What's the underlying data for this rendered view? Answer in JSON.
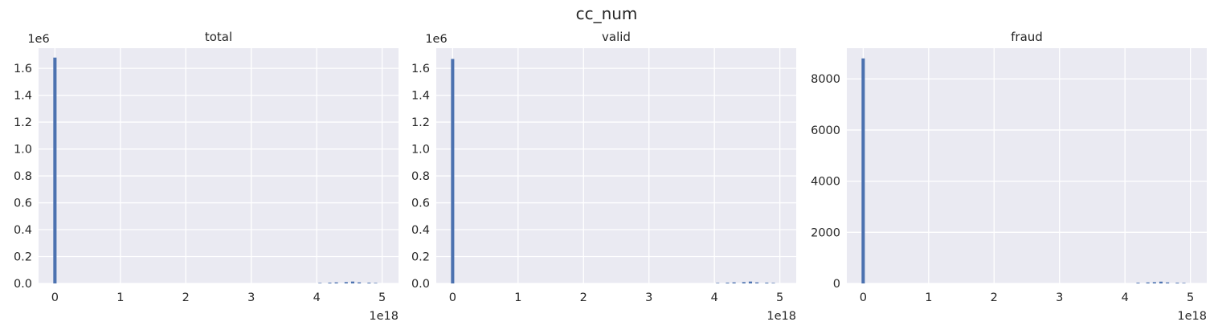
{
  "figure": {
    "suptitle": "cc_num"
  },
  "colors": {
    "bar": "#4c72b0",
    "axes_bg": "#eaeaf2",
    "grid": "#ffffff",
    "text": "#262626"
  },
  "chart_data": [
    {
      "type": "bar",
      "title": "total",
      "xlabel": "",
      "ylabel": "",
      "xlim": [
        -0.25,
        5.25
      ],
      "ylim": [
        0,
        1.75
      ],
      "x_ticks": [
        0,
        1,
        2,
        3,
        4,
        5
      ],
      "x_tick_labels": [
        "0",
        "1",
        "2",
        "3",
        "4",
        "5"
      ],
      "y_ticks": [
        0,
        0.2,
        0.4,
        0.6,
        0.8,
        1.0,
        1.2,
        1.4,
        1.6
      ],
      "y_tick_labels": [
        "0.0",
        "0.2",
        "0.4",
        "0.6",
        "0.8",
        "1.0",
        "1.2",
        "1.4",
        "1.6"
      ],
      "x_offset_label": "1e18",
      "y_offset_label": "1e6",
      "grid": true,
      "bin_width": 0.05,
      "bins": [
        {
          "x": 0.0,
          "value": 1.68
        },
        {
          "x": 4.05,
          "value": 0.004
        },
        {
          "x": 4.2,
          "value": 0.006
        },
        {
          "x": 4.3,
          "value": 0.008
        },
        {
          "x": 4.45,
          "value": 0.01
        },
        {
          "x": 4.55,
          "value": 0.014
        },
        {
          "x": 4.65,
          "value": 0.008
        },
        {
          "x": 4.8,
          "value": 0.006
        },
        {
          "x": 4.9,
          "value": 0.004
        }
      ]
    },
    {
      "type": "bar",
      "title": "valid",
      "xlabel": "",
      "ylabel": "",
      "xlim": [
        -0.25,
        5.25
      ],
      "ylim": [
        0,
        1.75
      ],
      "x_ticks": [
        0,
        1,
        2,
        3,
        4,
        5
      ],
      "x_tick_labels": [
        "0",
        "1",
        "2",
        "3",
        "4",
        "5"
      ],
      "y_ticks": [
        0,
        0.2,
        0.4,
        0.6,
        0.8,
        1.0,
        1.2,
        1.4,
        1.6
      ],
      "y_tick_labels": [
        "0.0",
        "0.2",
        "0.4",
        "0.6",
        "0.8",
        "1.0",
        "1.2",
        "1.4",
        "1.6"
      ],
      "x_offset_label": "1e18",
      "y_offset_label": "1e6",
      "grid": true,
      "bin_width": 0.05,
      "bins": [
        {
          "x": 0.0,
          "value": 1.67
        },
        {
          "x": 4.05,
          "value": 0.004
        },
        {
          "x": 4.2,
          "value": 0.006
        },
        {
          "x": 4.3,
          "value": 0.008
        },
        {
          "x": 4.45,
          "value": 0.01
        },
        {
          "x": 4.55,
          "value": 0.014
        },
        {
          "x": 4.65,
          "value": 0.008
        },
        {
          "x": 4.8,
          "value": 0.006
        },
        {
          "x": 4.9,
          "value": 0.004
        }
      ]
    },
    {
      "type": "bar",
      "title": "fraud",
      "xlabel": "",
      "ylabel": "",
      "xlim": [
        -0.25,
        5.25
      ],
      "ylim": [
        0,
        9200
      ],
      "x_ticks": [
        0,
        1,
        2,
        3,
        4,
        5
      ],
      "x_tick_labels": [
        "0",
        "1",
        "2",
        "3",
        "4",
        "5"
      ],
      "y_ticks": [
        0,
        2000,
        4000,
        6000,
        8000
      ],
      "y_tick_labels": [
        "0",
        "2000",
        "4000",
        "6000",
        "8000"
      ],
      "x_offset_label": "1e18",
      "y_offset_label": "",
      "grid": true,
      "bin_width": 0.05,
      "bins": [
        {
          "x": 0.0,
          "value": 8800
        },
        {
          "x": 4.2,
          "value": 30
        },
        {
          "x": 4.35,
          "value": 40
        },
        {
          "x": 4.45,
          "value": 50
        },
        {
          "x": 4.55,
          "value": 70
        },
        {
          "x": 4.65,
          "value": 40
        },
        {
          "x": 4.8,
          "value": 30
        },
        {
          "x": 4.9,
          "value": 20
        }
      ]
    }
  ]
}
